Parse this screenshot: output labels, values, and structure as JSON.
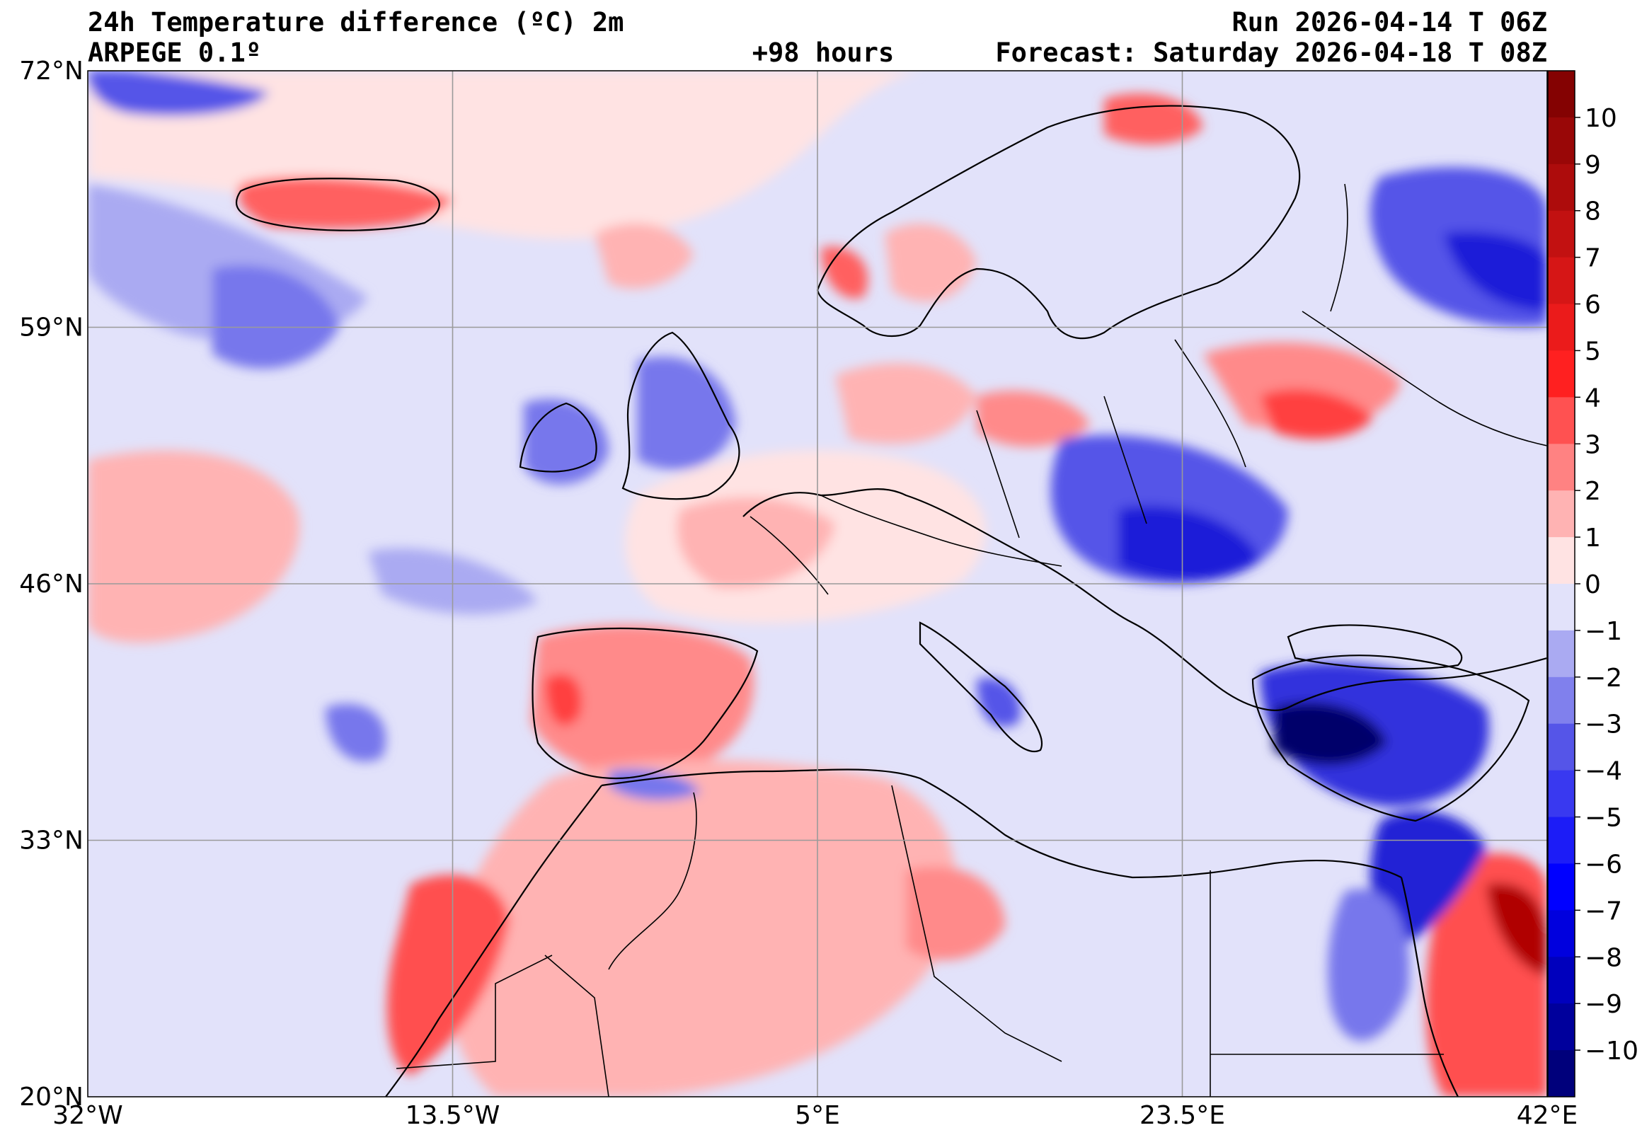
{
  "header": {
    "title": "24h Temperature difference (ºC) 2m",
    "model": "ARPEGE 0.1º",
    "lead_time": "+98 hours",
    "run": "Run 2026-04-14 T 06Z",
    "forecast": "Forecast: Saturday 2026-04-18 T 08Z"
  },
  "map": {
    "lon_range": [
      -32,
      42
    ],
    "lat_range": [
      20,
      72
    ],
    "lon_ticks": [
      {
        "value": -32,
        "label": "32°W"
      },
      {
        "value": -13.5,
        "label": "13.5°W"
      },
      {
        "value": 5,
        "label": "5°E"
      },
      {
        "value": 23.5,
        "label": "23.5°E"
      },
      {
        "value": 42,
        "label": "42°E"
      }
    ],
    "lat_ticks": [
      {
        "value": 72,
        "label": "72°N"
      },
      {
        "value": 59,
        "label": "59°N"
      },
      {
        "value": 46,
        "label": "46°N"
      },
      {
        "value": 33,
        "label": "33°N"
      },
      {
        "value": 20,
        "label": "20°N"
      }
    ],
    "grid": true
  },
  "colorbar": {
    "min": -11,
    "max": 11,
    "tick_labels": [
      "10",
      "9",
      "8",
      "7",
      "6",
      "5",
      "4",
      "3",
      "2",
      "1",
      "0",
      "−1",
      "−2",
      "−3",
      "−4",
      "−5",
      "−6",
      "−7",
      "−8",
      "−9",
      "−10"
    ],
    "colors": {
      "strong_warm": "#7a0000",
      "warm": "#ff2020",
      "light_warm": "#ffb3b3",
      "very_light_warm": "#ffe3e3",
      "very_light_cool": "#e2e2fa",
      "light_cool": "#aaaaf2",
      "cool": "#5555e8",
      "strong_cool": "#00006a"
    }
  }
}
